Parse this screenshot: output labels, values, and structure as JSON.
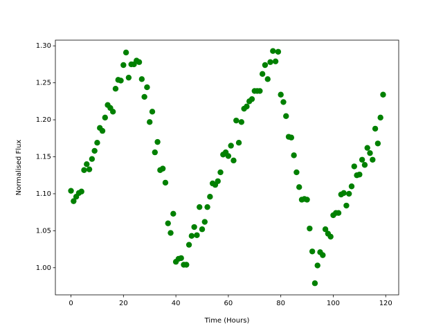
{
  "chart_data": {
    "type": "scatter",
    "xlabel": "Time (Hours)",
    "ylabel": "Normalised Flux",
    "x": [
      0,
      1,
      2,
      3,
      4,
      5,
      6,
      7,
      8,
      9,
      10,
      11,
      12,
      13,
      14,
      15,
      16,
      17,
      18,
      19,
      20,
      21,
      22,
      23,
      24,
      25,
      26,
      27,
      28,
      29,
      30,
      31,
      32,
      33,
      34,
      35,
      36,
      37,
      38,
      39,
      40,
      41,
      42,
      43,
      44,
      45,
      46,
      47,
      48,
      49,
      50,
      51,
      52,
      53,
      54,
      55,
      56,
      57,
      58,
      59,
      60,
      61,
      62,
      63,
      64,
      65,
      66,
      67,
      68,
      69,
      70,
      71,
      72,
      73,
      74,
      75,
      76,
      77,
      78,
      79,
      80,
      81,
      82,
      83,
      84,
      85,
      86,
      87,
      88,
      89,
      90,
      91,
      92,
      93,
      94,
      95,
      96,
      97,
      98,
      99,
      100,
      101,
      102,
      103,
      104,
      105,
      106,
      107,
      108,
      109,
      110,
      111,
      112,
      113,
      114,
      115,
      116,
      117,
      118,
      119
    ],
    "values": [
      1.104,
      1.09,
      1.096,
      1.101,
      1.103,
      1.132,
      1.14,
      1.133,
      1.147,
      1.158,
      1.169,
      1.189,
      1.185,
      1.203,
      1.22,
      1.216,
      1.211,
      1.242,
      1.254,
      1.253,
      1.274,
      1.291,
      1.257,
      1.275,
      1.275,
      1.28,
      1.278,
      1.255,
      1.231,
      1.244,
      1.197,
      1.211,
      1.156,
      1.17,
      1.132,
      1.134,
      1.115,
      1.06,
      1.047,
      1.073,
      1.008,
      1.012,
      1.013,
      1.004,
      1.004,
      1.031,
      1.043,
      1.055,
      1.044,
      1.082,
      1.052,
      1.062,
      1.082,
      1.096,
      1.114,
      1.112,
      1.117,
      1.129,
      1.153,
      1.156,
      1.151,
      1.165,
      1.145,
      1.199,
      1.169,
      1.197,
      1.215,
      1.218,
      1.225,
      1.228,
      1.239,
      1.239,
      1.239,
      1.262,
      1.274,
      1.255,
      1.278,
      1.293,
      1.279,
      1.292,
      1.234,
      1.224,
      1.205,
      1.177,
      1.176,
      1.152,
      1.129,
      1.109,
      1.092,
      1.093,
      1.092,
      1.053,
      1.022,
      0.979,
      1.003,
      1.021,
      1.017,
      1.052,
      1.046,
      1.042,
      1.071,
      1.074,
      1.074,
      1.099,
      1.101,
      1.084,
      1.1,
      1.11,
      1.137,
      1.125,
      1.126,
      1.146,
      1.139,
      1.162,
      1.155,
      1.146,
      1.188,
      1.168,
      1.203,
      1.234
    ],
    "color": "#008000",
    "xlim": [
      -5.95,
      124.95
    ],
    "ylim": [
      0.9633,
      1.3077
    ],
    "xticks": [
      0,
      20,
      40,
      60,
      80,
      100,
      120
    ],
    "yticks": [
      {
        "value": 1.0,
        "label": "1.00"
      },
      {
        "value": 1.05,
        "label": "1.05"
      },
      {
        "value": 1.1,
        "label": "1.10"
      },
      {
        "value": 1.15,
        "label": "1.15"
      },
      {
        "value": 1.2,
        "label": "1.20"
      },
      {
        "value": 1.25,
        "label": "1.25"
      },
      {
        "value": 1.3,
        "label": "1.30"
      }
    ]
  }
}
